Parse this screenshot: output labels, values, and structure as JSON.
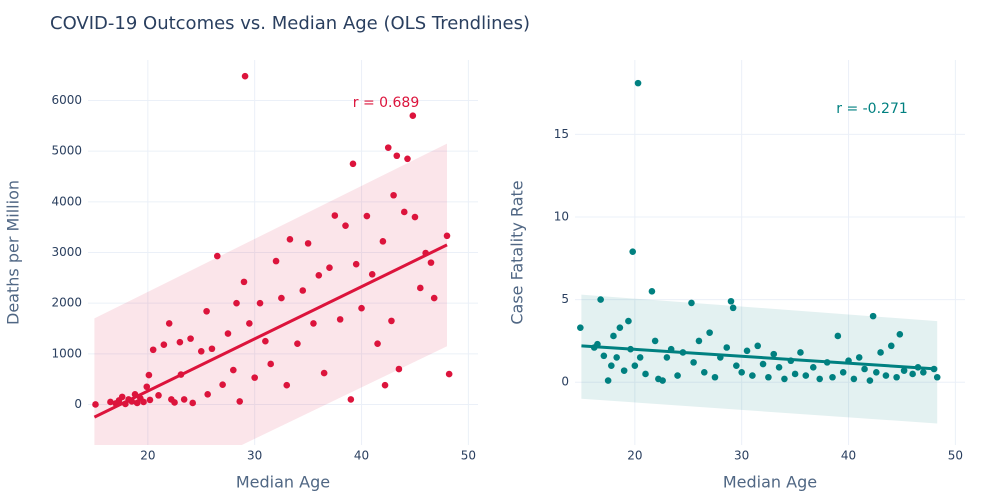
{
  "title": "COVID-19 Outcomes vs. Median Age (OLS Trendlines)",
  "chart_data": [
    {
      "type": "scatter",
      "x_label": "Median Age",
      "y_label": "Deaths per Million",
      "color": "#dc143c",
      "annotation": "r = 0.689",
      "grid": true,
      "xlim": [
        14.4,
        50.9
      ],
      "xticks": [
        20,
        30,
        40,
        50
      ],
      "ylim": [
        -800,
        6800
      ],
      "yticks": [
        0,
        1000,
        2000,
        3000,
        4000,
        5000,
        6000
      ],
      "x": [
        15.1,
        16.5,
        17,
        17.3,
        17.6,
        17.9,
        18.2,
        18.5,
        18.8,
        19,
        19.3,
        19.6,
        19.9,
        20.1,
        20.2,
        20.5,
        21,
        21.5,
        22,
        22.2,
        22.5,
        23,
        23.1,
        23.4,
        24,
        24.2,
        25,
        25.5,
        25.6,
        26,
        26.5,
        27,
        27.5,
        28,
        28.3,
        28.6,
        29,
        29.1,
        29.5,
        30,
        30.5,
        31,
        31.5,
        32,
        32.5,
        33,
        33.3,
        34,
        34.5,
        35,
        35.5,
        36,
        36.5,
        37,
        37.5,
        38,
        38.5,
        39,
        39.2,
        39.5,
        40,
        40.5,
        41,
        41.5,
        42,
        42.2,
        42.5,
        42.8,
        43,
        43.3,
        43.5,
        44,
        44.3,
        44.8,
        45,
        45.5,
        46,
        46.5,
        46.8,
        48,
        48.2
      ],
      "y": [
        0,
        50,
        20,
        80,
        150,
        10,
        100,
        60,
        200,
        30,
        120,
        50,
        350,
        580,
        90,
        1080,
        180,
        1180,
        1600,
        100,
        40,
        1230,
        590,
        100,
        1300,
        30,
        1050,
        1840,
        200,
        1100,
        2930,
        390,
        1400,
        680,
        2000,
        60,
        2420,
        6480,
        1600,
        530,
        2000,
        1250,
        800,
        2830,
        2100,
        380,
        3260,
        1200,
        2250,
        3180,
        1600,
        2550,
        620,
        2700,
        3730,
        1680,
        3530,
        100,
        4750,
        2770,
        1900,
        3720,
        2570,
        1200,
        3220,
        380,
        5070,
        1650,
        4130,
        4910,
        700,
        3800,
        4850,
        5700,
        3700,
        2300,
        2990,
        2800,
        2100,
        3330,
        600
      ],
      "trendline": {
        "x": [
          15,
          48
        ],
        "y": [
          -250,
          3150
        ]
      },
      "band": {
        "x": [
          15,
          48
        ],
        "upper": [
          1700,
          5150
        ],
        "lower": [
          -2200,
          1150
        ]
      }
    },
    {
      "type": "scatter",
      "x_label": "Median Age",
      "y_label": "Case Fatality Rate",
      "color": "#008080",
      "annotation": "r = -0.271",
      "grid": true,
      "xlim": [
        14.4,
        50.9
      ],
      "xticks": [
        20,
        30,
        40,
        50
      ],
      "ylim": [
        -3.8,
        19.5
      ],
      "yticks": [
        0,
        5,
        10,
        15
      ],
      "x": [
        14.9,
        16.2,
        16.5,
        16.8,
        17.1,
        17.5,
        17.8,
        18,
        18.3,
        18.6,
        19,
        19.4,
        19.6,
        19.8,
        20,
        20.3,
        20.5,
        21,
        21.6,
        21.9,
        22.2,
        22.6,
        23,
        23.4,
        24,
        24.5,
        25.3,
        25.5,
        26,
        26.5,
        27,
        27.5,
        28,
        28.6,
        29,
        29.2,
        29.5,
        30,
        30.5,
        31,
        31.5,
        32,
        32.5,
        33,
        33.5,
        34,
        34.6,
        35,
        35.5,
        36,
        36.7,
        37.3,
        38,
        38.5,
        39,
        39.5,
        40,
        40.5,
        41,
        41.5,
        42,
        42.3,
        42.6,
        43,
        43.5,
        44,
        44.5,
        44.8,
        45.2,
        46,
        46.5,
        47,
        48,
        48.3
      ],
      "y": [
        3.3,
        2.1,
        2.3,
        5.0,
        1.6,
        0.1,
        1.0,
        2.8,
        1.5,
        3.3,
        0.7,
        3.7,
        2.0,
        7.9,
        1.0,
        18.1,
        1.5,
        0.5,
        5.5,
        2.5,
        0.2,
        0.1,
        1.5,
        2.0,
        0.4,
        1.8,
        4.8,
        1.2,
        2.5,
        0.6,
        3.0,
        0.3,
        1.5,
        2.1,
        4.9,
        4.5,
        1.0,
        0.6,
        1.9,
        0.4,
        2.2,
        1.1,
        0.3,
        1.7,
        0.9,
        0.2,
        1.3,
        0.5,
        1.8,
        0.4,
        0.9,
        0.2,
        1.2,
        0.3,
        2.8,
        0.6,
        1.3,
        0.2,
        1.5,
        0.8,
        0.1,
        4.0,
        0.6,
        1.8,
        0.4,
        2.2,
        0.3,
        2.9,
        0.7,
        0.5,
        0.9,
        0.6,
        0.8,
        0.3
      ],
      "trendline": {
        "x": [
          15,
          48.3
        ],
        "y": [
          2.2,
          0.8
        ]
      },
      "band": {
        "x": [
          15,
          48.3
        ],
        "upper": [
          5.3,
          3.7
        ],
        "lower": [
          -1.0,
          -2.5
        ]
      }
    }
  ]
}
